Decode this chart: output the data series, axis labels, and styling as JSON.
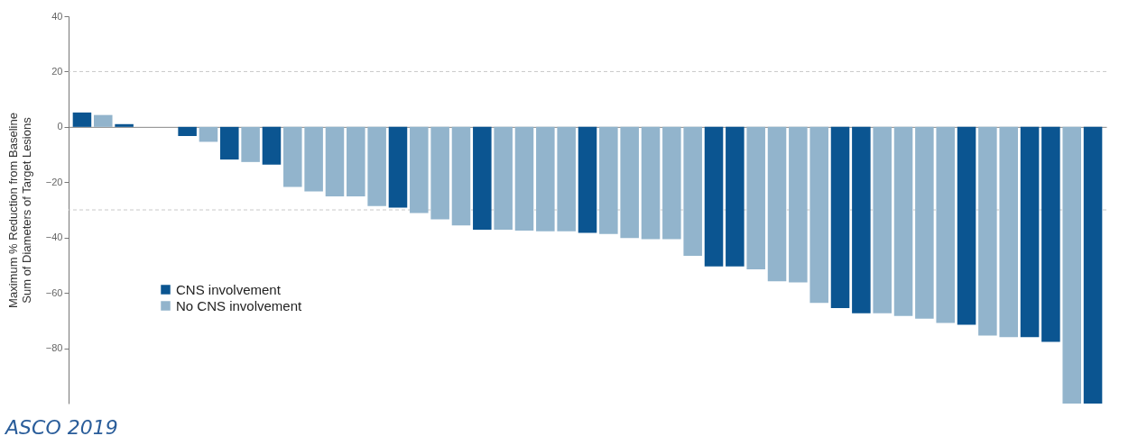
{
  "chart_data": {
    "type": "bar",
    "ylabel": "Maximum % Reduction from Baseline\nSum of Diameters of Target Lesions",
    "categories": [
      null,
      null,
      null,
      null,
      null,
      null,
      null,
      null,
      null,
      null,
      null,
      null,
      null,
      null,
      null,
      null,
      null,
      null,
      null,
      null,
      null,
      null,
      null,
      null,
      null,
      null,
      null,
      null,
      null,
      null,
      null,
      null,
      null,
      null,
      null,
      null,
      null,
      null,
      null,
      null,
      null,
      null,
      null,
      null,
      null,
      null,
      null,
      null,
      null
    ],
    "series": [
      {
        "name": "CNS involvement",
        "color": "#0b5591",
        "values": [
          5.2,
          null,
          1,
          null,
          null,
          -3.3,
          null,
          -11.8,
          null,
          -13.6,
          null,
          null,
          null,
          null,
          null,
          -29.2,
          null,
          null,
          null,
          -37.2,
          null,
          null,
          null,
          null,
          -38.3,
          null,
          null,
          null,
          null,
          null,
          -50.4,
          -50.4,
          null,
          null,
          null,
          null,
          -65.5,
          -67.4,
          null,
          null,
          null,
          null,
          -71.5,
          null,
          null,
          -76,
          -77.7,
          null,
          -100
        ]
      },
      {
        "name": "No CNS involvement",
        "color": "#92b4cc",
        "values": [
          null,
          4.3,
          null,
          null,
          null,
          null,
          -5.4,
          null,
          -12.7,
          null,
          -21.7,
          -23.3,
          -25.1,
          -25.1,
          -28.6,
          null,
          -31.1,
          -33.4,
          -35.6,
          null,
          -37.2,
          -37.5,
          -37.7,
          -37.7,
          null,
          -38.7,
          -40.2,
          -40.6,
          -40.6,
          -46.6,
          null,
          null,
          -51.5,
          -55.8,
          -56.2,
          -63.6,
          null,
          null,
          -67.4,
          -68.3,
          -69.3,
          -70.9,
          null,
          -75.4,
          -76,
          null,
          null,
          -100,
          null
        ]
      }
    ],
    "ylim": [
      -100,
      40
    ],
    "yticks": [
      -80,
      -60,
      -40,
      -20,
      0,
      20,
      40
    ],
    "grid": false,
    "legend": "bottom left",
    "ref_lines": [
      {
        "axis": "y",
        "value": 20,
        "color": "#c8c8c8",
        "line_style": "dashed"
      },
      {
        "axis": "y",
        "value": -30,
        "color": "#c8c8c8",
        "line_style": "dashed"
      }
    ],
    "annotations": [
      "ASCO 2019"
    ]
  }
}
